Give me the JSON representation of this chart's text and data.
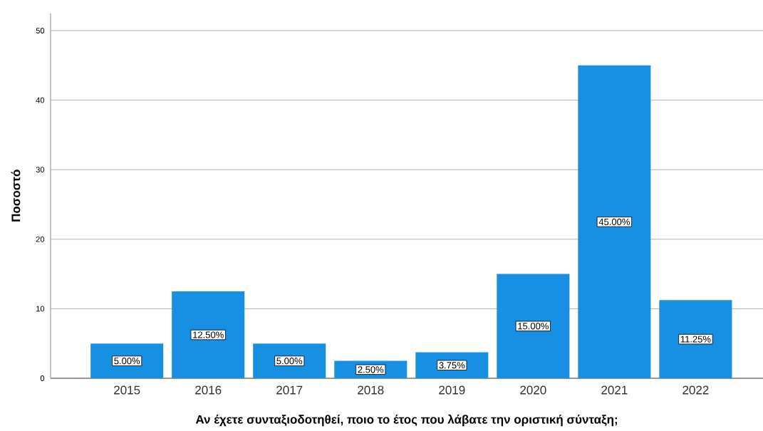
{
  "chart_data": {
    "type": "bar",
    "xlabel": "Αν έχετε συνταξιοδοτηθεί, ποιο το έτος που λάβατε την οριστική σύνταξη;",
    "ylabel": "Ποσοστό",
    "categories": [
      "2015",
      "2016",
      "2017",
      "2018",
      "2019",
      "2020",
      "2021",
      "2022"
    ],
    "values": [
      5,
      12.5,
      5,
      2.5,
      3.75,
      15,
      45,
      11.25
    ],
    "value_labels": [
      "5.00%",
      "12.50%",
      "5.00%",
      "2.50%",
      "3.75%",
      "15.00%",
      "45.00%",
      "11.25%"
    ],
    "color": "#1790e3",
    "ylim": [
      0,
      52.5
    ],
    "yticks": [
      0,
      10,
      20,
      30,
      40,
      50
    ],
    "grid": "y"
  }
}
